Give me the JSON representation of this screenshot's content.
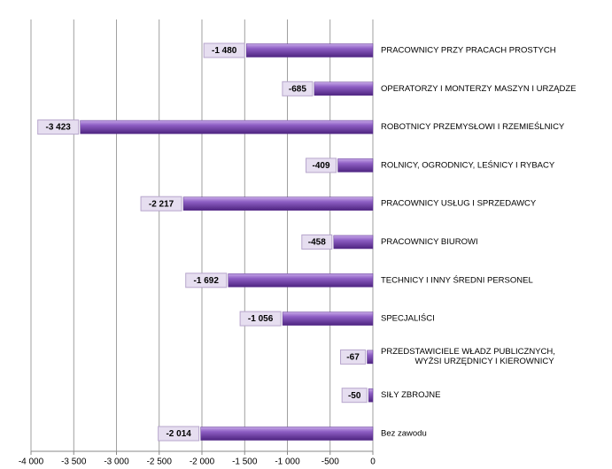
{
  "chart_data": {
    "type": "bar",
    "orientation": "horizontal",
    "categories": [
      "PRACOWNICY PRZY PRACACH PROSTYCH",
      "OPERATORZY I MONTERZY MASZYN I URZĄDZE",
      "ROBOTNICY PRZEMYSŁOWI I RZEMIEŚLNICY",
      "ROLNICY, OGRODNICY, LEŚNICY I RYBACY",
      "PRACOWNICY USŁUG I SPRZEDAWCY",
      "PRACOWNICY BIUROWI",
      "TECHNICY I INNY ŚREDNI PERSONEL",
      "SPECJALIŚCI",
      [
        "PRZEDSTAWICIELE WŁADZ PUBLICZNYCH,",
        "WYŻSI URZĘDNICY I KIEROWNICY"
      ],
      "SIŁY ZBROJNE",
      "Bez zawodu"
    ],
    "values": [
      -1480,
      -685,
      -3423,
      -409,
      -2217,
      -458,
      -1692,
      -1056,
      -67,
      -50,
      -2014
    ],
    "value_labels": [
      "-1 480",
      "-685",
      "-3 423",
      "-409",
      "-2 217",
      "-458",
      "-1 692",
      "-1 056",
      "-67",
      "-50",
      "-2 014"
    ],
    "color": "#7b4fb0",
    "xlim": [
      -4000,
      0
    ],
    "xticks": [
      {
        "value": -4000,
        "label": "-4 000"
      },
      {
        "value": -3500,
        "label": "-3 500"
      },
      {
        "value": -3000,
        "label": "-3 000"
      },
      {
        "value": -2500,
        "label": "-2 500"
      },
      {
        "value": -2000,
        "label": "-2 000"
      },
      {
        "value": -1500,
        "label": "-1 500"
      },
      {
        "value": -1000,
        "label": "-1 000"
      },
      {
        "value": -500,
        "label": "-500"
      },
      0
    ],
    "grid": true
  }
}
